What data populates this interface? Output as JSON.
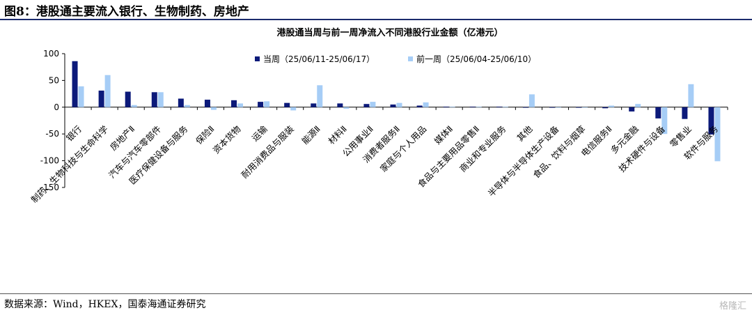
{
  "figure_title": "图8：港股通主要流入银行、生物制药、房地产",
  "source": "数据来源：Wind，HKEX，国泰海通证券研究",
  "watermark": "格隆汇",
  "chart_data": {
    "type": "bar",
    "title": "港股通当周与前一周净流入不同港股行业金额（亿港元）",
    "ylim": [
      -150,
      100
    ],
    "yticks": [
      100,
      50,
      0,
      -50,
      -100,
      -150
    ],
    "categories": [
      "银行",
      "制药、生物科技与生命科学",
      "房地产Ⅱ",
      "汽车与汽车零部件",
      "医疗保健设备与服务",
      "保险Ⅱ",
      "资本货物",
      "运输",
      "耐用消费品与服装",
      "能源Ⅱ",
      "材料Ⅱ",
      "公用事业Ⅱ",
      "消费者服务Ⅱ",
      "家庭与个人用品",
      "媒体Ⅱ",
      "食品与主要用品零售Ⅱ",
      "商业和专业服务",
      "其他",
      "半导体与半导体生产设备",
      "食品、饮料与烟草",
      "电信服务Ⅱ",
      "多元金融",
      "技术硬件与设备",
      "零售业",
      "软件与服务"
    ],
    "series": [
      {
        "name": "当周（25/06/11-25/06/17）",
        "color": "#0c1a7a",
        "values": [
          86,
          31,
          29,
          28,
          16,
          14,
          13,
          10,
          8,
          7,
          7,
          6,
          5,
          3,
          1,
          1,
          1,
          -1,
          -1,
          -1,
          -2,
          -8,
          -21,
          -22,
          -51
        ]
      },
      {
        "name": "前一周（25/06/04-25/06/10）",
        "color": "#a6cdf6",
        "values": [
          39,
          60,
          4,
          28,
          4,
          -5,
          7,
          11,
          -6,
          41,
          -3,
          10,
          8,
          9,
          1,
          1,
          1,
          24,
          -1,
          -1,
          3,
          6,
          -50,
          43,
          -101
        ]
      }
    ],
    "legend": "top"
  }
}
